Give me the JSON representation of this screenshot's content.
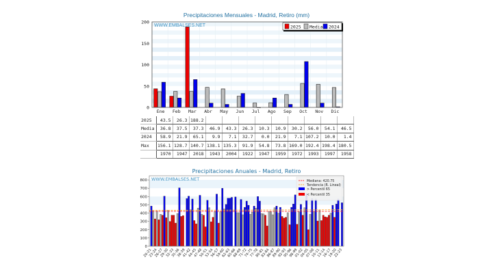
{
  "chart_data": [
    {
      "type": "bar",
      "title": "Precipitaciones Mensuales - Madrid, Retiro (mm)",
      "watermark": "WWW.EMBALSES.NET",
      "categories": [
        "Ene",
        "Feb",
        "Mar",
        "Abr",
        "May",
        "Jun",
        "Jul",
        "Ago",
        "Sep",
        "Oct",
        "Nov",
        "Dic"
      ],
      "series": [
        {
          "name": "2025",
          "color": "#ee0000",
          "values": [
            43.5,
            26.3,
            188.2,
            null,
            null,
            null,
            null,
            null,
            null,
            null,
            null,
            null
          ]
        },
        {
          "name": "Media",
          "color": "#bbbbbb",
          "values": [
            36.8,
            37.5,
            37.3,
            46.9,
            43.3,
            26.3,
            10.3,
            10.9,
            30.2,
            56.0,
            54.1,
            46.5
          ]
        },
        {
          "name": "2024",
          "color": "#0000ee",
          "values": [
            58.9,
            21.9,
            65.1,
            9.9,
            7.1,
            32.7,
            0.0,
            21.9,
            7.1,
            107.2,
            10.0,
            1.4
          ]
        }
      ],
      "ylim": [
        0,
        200
      ],
      "yticks": [
        0,
        50,
        100,
        150,
        200
      ],
      "grid": true,
      "legend": "top-right",
      "table": {
        "rows": [
          {
            "label": "2025",
            "cells": [
              "43.5",
              "26.3",
              "188.2",
              "",
              "",
              "",
              "",
              "",
              "",
              "",
              "",
              ""
            ]
          },
          {
            "label": "Media",
            "cells": [
              "36.8",
              "37.5",
              "37.3",
              "46.9",
              "43.3",
              "26.3",
              "10.3",
              "10.9",
              "30.2",
              "56.0",
              "54.1",
              "46.5"
            ]
          },
          {
            "label": "2024",
            "cells": [
              "58.9",
              "21.9",
              "65.1",
              "9.9",
              "7.1",
              "32.7",
              "0.0",
              "21.9",
              "7.1",
              "107.2",
              "10.0",
              "1.4"
            ]
          },
          {
            "label": "Max",
            "cells": [
              "156.1",
              "128.7",
              "140.7",
              "138.1",
              "135.3",
              "91.9",
              "54.8",
              "73.8",
              "169.0",
              "192.4",
              "198.4",
              "180.5"
            ]
          },
          {
            "label": "",
            "cells": [
              "1970",
              "1947",
              "2018",
              "1943",
              "2004",
              "1922",
              "1947",
              "1959",
              "1972",
              "1993",
              "1997",
              "1958"
            ]
          }
        ]
      }
    },
    {
      "type": "bar",
      "title": "Precipitaciones Anuales - Madrid, Retiro",
      "watermark": "WWW.EMBALSES.NET",
      "first_year": 1920,
      "values": [
        485,
        425,
        330,
        425,
        320,
        385,
        375,
        605,
        345,
        435,
        300,
        375,
        375,
        280,
        395,
        705,
        360,
        370,
        null,
        575,
        605,
        440,
        570,
        310,
        270,
        460,
        615,
        385,
        375,
        235,
        555,
        465,
        295,
        350,
        415,
        630,
        280,
        415,
        700,
        450,
        505,
        580,
        580,
        590,
        null,
        595,
        405,
        405,
        565,
        380,
        470,
        545,
        495,
        385,
        410,
        485,
        460,
        600,
        545,
        395,
        390,
        375,
        245,
        420,
        415,
        380,
        465,
        485,
        400,
        470,
        360,
        340,
        350,
        405,
        260,
        470,
        510,
        620,
        265,
        415,
        505,
        375,
        465,
        640,
        200,
        385,
        575,
        420,
        570,
        305,
        440,
        310,
        375,
        355,
        350,
        375,
        400,
        495,
        350,
        510,
        570,
        null,
        525
      ],
      "xtick_labels": [
        "20-21",
        "23-24",
        "26-27",
        "29-30",
        "32-33",
        "35-36",
        "38-39",
        "41-42",
        "44-45",
        "47-48",
        "50-51",
        "53-54",
        "56-57",
        "59-60",
        "62-63",
        "65-66",
        "68-69",
        "71-72",
        "74-75",
        "77-78",
        "80-81",
        "83-84",
        "86-87",
        "89-90",
        "92-93",
        "95-96",
        "98-99",
        "01-02",
        "04-05",
        "07-08",
        "10-11",
        "13-14",
        "16-17",
        "19-20",
        "22-23"
      ],
      "ylim": [
        0,
        850
      ],
      "yticks": [
        0,
        100,
        200,
        300,
        400,
        500,
        600,
        700,
        800
      ],
      "median": 420.75,
      "trend": [
        432,
        440
      ],
      "legend": "top-right",
      "legend_entries": {
        "median": "Mediana: 420.75",
        "trend": "Tendencia (R. Lineal)",
        "high": "> Percentil 65",
        "low": "< Percentil 35"
      },
      "colors": {
        "high": "#0000ee",
        "low": "#ee0000",
        "mid": "#aaaaaa",
        "median": "#ff3333",
        "trend": "#ffaa33"
      }
    }
  ]
}
